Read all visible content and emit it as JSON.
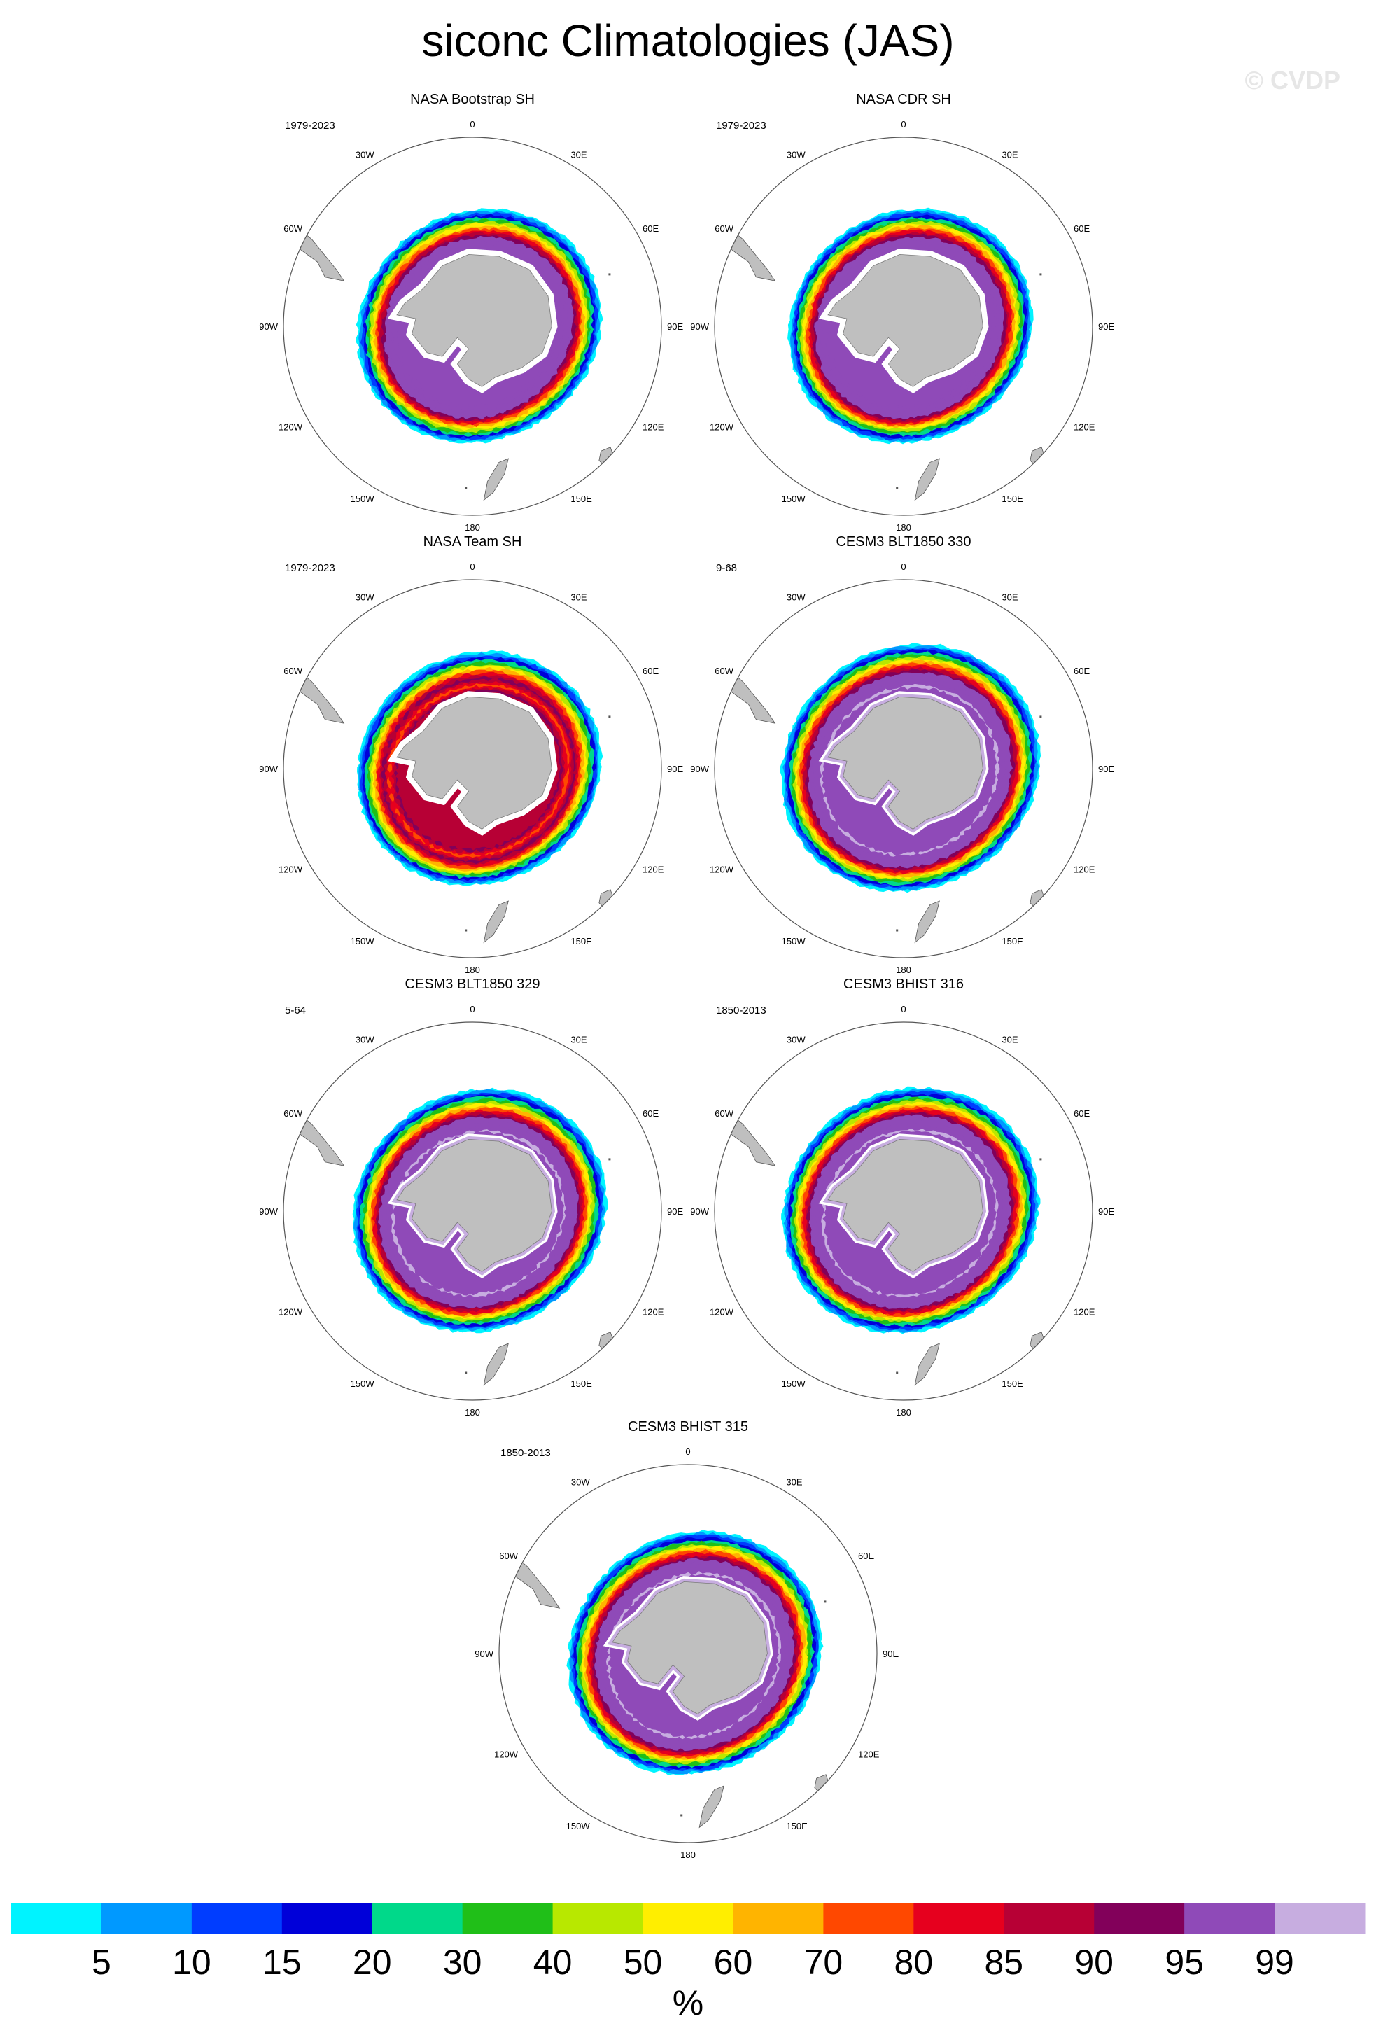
{
  "title": "siconc Climatologies (JAS)",
  "watermark": "© CVDP",
  "longitude_labels": {
    "top": "0",
    "bottom": "180",
    "e30": "30E",
    "e60": "60E",
    "e90": "90E",
    "e120": "120E",
    "e150": "150E",
    "w30": "30W",
    "w60": "60W",
    "w90": "90W",
    "w120": "120W",
    "w150": "150W"
  },
  "panels": [
    {
      "title": "NASA Bootstrap SH",
      "period": "1979-2023",
      "ice_style": "obs",
      "extent": 1.0
    },
    {
      "title": "NASA CDR SH",
      "period": "1979-2023",
      "ice_style": "obs",
      "extent": 1.0
    },
    {
      "title": "NASA Team SH",
      "period": "1979-2023",
      "ice_style": "team",
      "extent": 1.0
    },
    {
      "title": "CESM3 BLT1850 330",
      "period": "9-68",
      "ice_style": "model",
      "extent": 1.06
    },
    {
      "title": "CESM3 BLT1850 329",
      "period": "5-64",
      "ice_style": "model",
      "extent": 1.04
    },
    {
      "title": "CESM3 BHIST 316",
      "period": "1850-2013",
      "ice_style": "hist",
      "extent": 1.05
    },
    {
      "title": "CESM3 BHIST 315",
      "period": "1850-2013",
      "ice_style": "hist",
      "extent": 1.04
    }
  ],
  "colorbar": {
    "units": "%",
    "labels": [
      "5",
      "10",
      "15",
      "20",
      "30",
      "40",
      "50",
      "60",
      "70",
      "80",
      "85",
      "90",
      "95",
      "99"
    ],
    "colors": [
      "#00f3ff",
      "#0099ff",
      "#003dff",
      "#0000d9",
      "#00d98a",
      "#20bf18",
      "#b8e800",
      "#ffee00",
      "#ffb400",
      "#ff4800",
      "#e6001e",
      "#b70035",
      "#82005a",
      "#8f4ab8",
      "#c7ade0"
    ]
  },
  "land_color": "#bfbfbf"
}
